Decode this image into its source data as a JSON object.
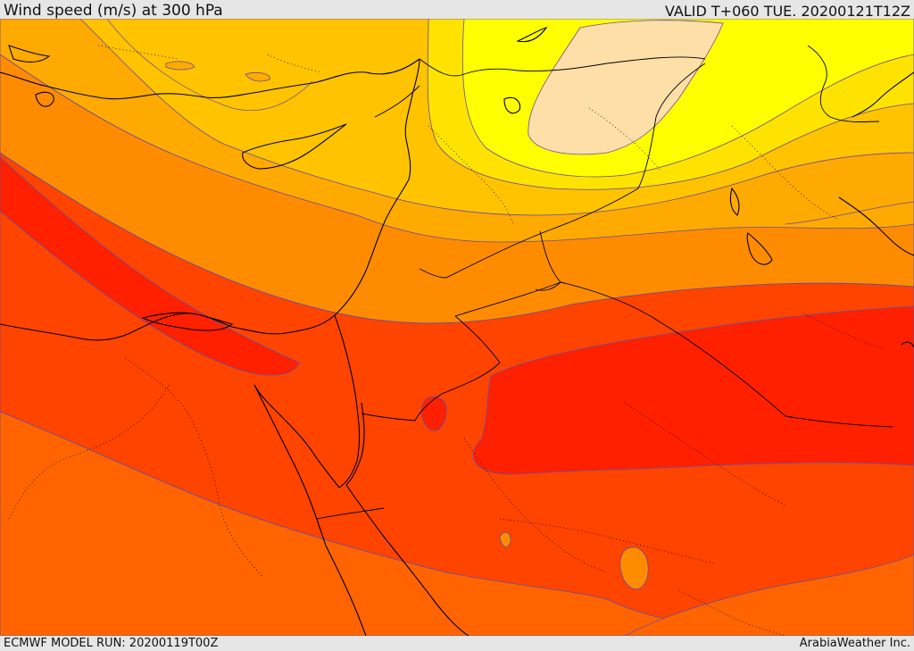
{
  "header": {
    "title": "Wind speed (m/s) at 300 hPa",
    "valid_time": "VALID T+060 TUE. 20200121T12Z"
  },
  "footer": {
    "model_run": "ECMWF MODEL RUN: 20200119T00Z",
    "credit": "ArabiaWeather Inc."
  },
  "map": {
    "variable": "wind speed",
    "level_hpa": 300,
    "units": "m/s",
    "palette": {
      "band_1": "#ffdfa8",
      "band_2": "#ffff00",
      "band_3": "#ffe300",
      "band_4": "#ffc300",
      "band_5": "#ffaa00",
      "band_6": "#ff8c00",
      "band_7": "#ff6400",
      "band_8": "#ff4400",
      "band_9": "#ff2000"
    },
    "contour_color": "#6a4aa0",
    "coastline_color": "#000000"
  }
}
